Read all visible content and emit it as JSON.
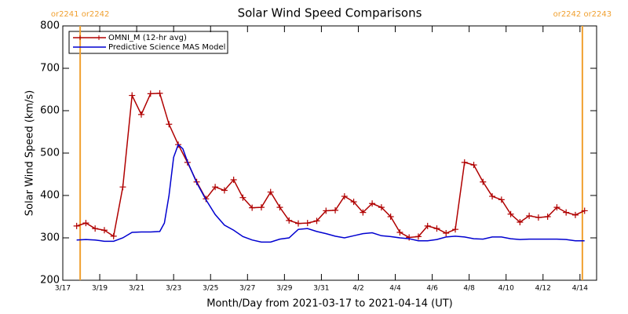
{
  "chart_data": {
    "type": "line",
    "title": "Solar Wind Speed Comparisons",
    "xlabel": "Month/Day from 2021-03-17 to 2021-04-14 (UT)",
    "ylabel": "Solar Wind Speed (km/s)",
    "xlim": [
      0,
      28.9
    ],
    "ylim": [
      200,
      800
    ],
    "yticks": [
      200,
      300,
      400,
      500,
      600,
      700,
      800
    ],
    "xticks": [
      {
        "value": 0,
        "label": "3/17"
      },
      {
        "value": 2,
        "label": "3/19"
      },
      {
        "value": 4,
        "label": "3/21"
      },
      {
        "value": 6,
        "label": "3/23"
      },
      {
        "value": 8,
        "label": "3/25"
      },
      {
        "value": 10,
        "label": "3/27"
      },
      {
        "value": 12,
        "label": "3/29"
      },
      {
        "value": 14,
        "label": "3/31"
      },
      {
        "value": 16,
        "label": "4/2"
      },
      {
        "value": 18,
        "label": "4/4"
      },
      {
        "value": 20,
        "label": "4/6"
      },
      {
        "value": 22,
        "label": "4/8"
      },
      {
        "value": 24,
        "label": "4/10"
      },
      {
        "value": 26,
        "label": "4/12"
      },
      {
        "value": 28,
        "label": "4/14"
      }
    ],
    "markers": [
      {
        "x": 0.94,
        "label": "or2241 or2242",
        "color": "#f0a030"
      },
      {
        "x": 28.13,
        "label": "or2242 or2243",
        "color": "#f0a030"
      }
    ],
    "series": [
      {
        "name": "OMNI_M (12-hr avg)",
        "color": "#b00000",
        "symbol": "plus",
        "x": [
          0.75,
          1.25,
          1.75,
          2.25,
          2.75,
          3.25,
          3.75,
          4.25,
          4.75,
          5.25,
          5.75,
          6.25,
          6.75,
          7.25,
          7.75,
          8.25,
          8.75,
          9.25,
          9.75,
          10.25,
          10.75,
          11.25,
          11.75,
          12.25,
          12.75,
          13.25,
          13.75,
          14.25,
          14.75,
          15.25,
          15.75,
          16.25,
          16.75,
          17.25,
          17.75,
          18.25,
          18.75,
          19.25,
          19.75,
          20.25,
          20.75,
          21.25,
          21.75,
          22.25,
          22.75,
          23.25,
          23.75,
          24.25,
          24.75,
          25.25,
          25.75,
          26.25,
          26.75,
          27.25,
          27.75,
          28.25
        ],
        "values": [
          328,
          335,
          322,
          318,
          304,
          420,
          636,
          591,
          640,
          641,
          568,
          520,
          478,
          432,
          392,
          420,
          412,
          437,
          395,
          371,
          372,
          408,
          372,
          341,
          334,
          335,
          340,
          364,
          365,
          398,
          385,
          360,
          381,
          372,
          350,
          313,
          301,
          303,
          328,
          322,
          311,
          320,
          478,
          472,
          432,
          398,
          390,
          356,
          337,
          352,
          348,
          350,
          372,
          360,
          354,
          364
        ]
      },
      {
        "name": "Predictive Science MAS Model",
        "color": "#0000d0",
        "x": [
          0.75,
          1.25,
          1.75,
          2.25,
          2.75,
          3.25,
          3.75,
          4.25,
          4.75,
          5.25,
          5.5,
          5.75,
          6.0,
          6.25,
          6.5,
          6.75,
          7.25,
          7.75,
          8.25,
          8.75,
          9.25,
          9.75,
          10.25,
          10.75,
          11.25,
          11.75,
          12.25,
          12.75,
          13.25,
          13.75,
          14.25,
          14.75,
          15.25,
          15.75,
          16.25,
          16.75,
          17.25,
          17.75,
          18.25,
          18.75,
          19.25,
          19.75,
          20.25,
          20.75,
          21.25,
          21.75,
          22.25,
          22.75,
          23.25,
          23.75,
          24.25,
          24.75,
          25.25,
          25.75,
          26.25,
          26.75,
          27.25,
          27.75,
          28.25
        ],
        "values": [
          295,
          296,
          295,
          292,
          292,
          300,
          313,
          314,
          314,
          315,
          335,
          400,
          490,
          520,
          510,
          480,
          430,
          390,
          355,
          330,
          318,
          303,
          295,
          290,
          290,
          297,
          300,
          320,
          322,
          315,
          310,
          304,
          300,
          305,
          310,
          312,
          305,
          303,
          300,
          298,
          293,
          293,
          296,
          302,
          304,
          302,
          298,
          297,
          302,
          302,
          298,
          296,
          297,
          297,
          297,
          297,
          296,
          293,
          293
        ]
      }
    ]
  }
}
